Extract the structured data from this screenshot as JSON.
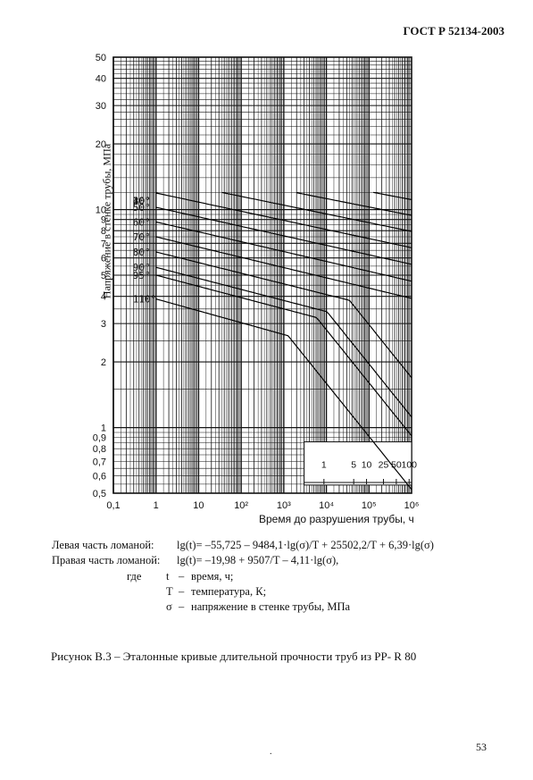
{
  "header": {
    "standard": "ГОСТ Р 52134-2003"
  },
  "chart_data": {
    "type": "line",
    "ylabel": "Напряжение в стенке трубы, МПа",
    "xlabel": "Время до разрушения трубы, ч",
    "x_scale": "log",
    "y_scale": "log",
    "xlim": [
      0.1,
      1000000
    ],
    "ylim": [
      0.5,
      50
    ],
    "x_ticks": [
      "0,1",
      "1",
      "10",
      "10²",
      "10³",
      "10⁴",
      "10⁵",
      "10⁶"
    ],
    "y_ticks": [
      "50",
      "40",
      "30",
      "20",
      "10",
      "9",
      "8",
      "7",
      "6",
      "5",
      "4",
      "3",
      "2",
      "1",
      "0,9",
      "0,8",
      "0,7",
      "0,6",
      "0,5"
    ],
    "years_axis": {
      "ticks": [
        "1",
        "5",
        "10",
        "25",
        "50",
        "100"
      ]
    },
    "grid": true,
    "series": [
      {
        "name": "10°",
        "temp_c": 10
      },
      {
        "name": "20°",
        "temp_c": 20
      },
      {
        "name": "30°",
        "temp_c": 30
      },
      {
        "name": "40°",
        "temp_c": 40
      },
      {
        "name": "50°",
        "temp_c": 50
      },
      {
        "name": "60°",
        "temp_c": 60
      },
      {
        "name": "70°",
        "temp_c": 70
      },
      {
        "name": "80°",
        "temp_c": 80
      },
      {
        "name": "90°",
        "temp_c": 90
      },
      {
        "name": "95°",
        "temp_c": 95
      },
      {
        "name": "110°",
        "temp_c": 110
      }
    ]
  },
  "formulas": {
    "left_label": "Левая часть ломаной:",
    "left_expr": "lg(t)= –55,725 – 9484,1·lg(σ)/T + 25502,2/T + 6,39·lg(σ)",
    "right_label": "Правая часть ломаной:",
    "right_expr": "lg(t)= –19,98 + 9507/T – 4,11·lg(σ),",
    "where": "где",
    "defs": [
      {
        "sym": "t",
        "dash": "–",
        "text": "время, ч;"
      },
      {
        "sym": "T",
        "dash": "–",
        "text": "температура, К;"
      },
      {
        "sym": "σ",
        "dash": "–",
        "text": "напряжение в стенке трубы, МПа"
      }
    ]
  },
  "caption": "Рисунок В.3 – Эталонные кривые длительной прочности труб из PP- R 80",
  "page_number": "53"
}
